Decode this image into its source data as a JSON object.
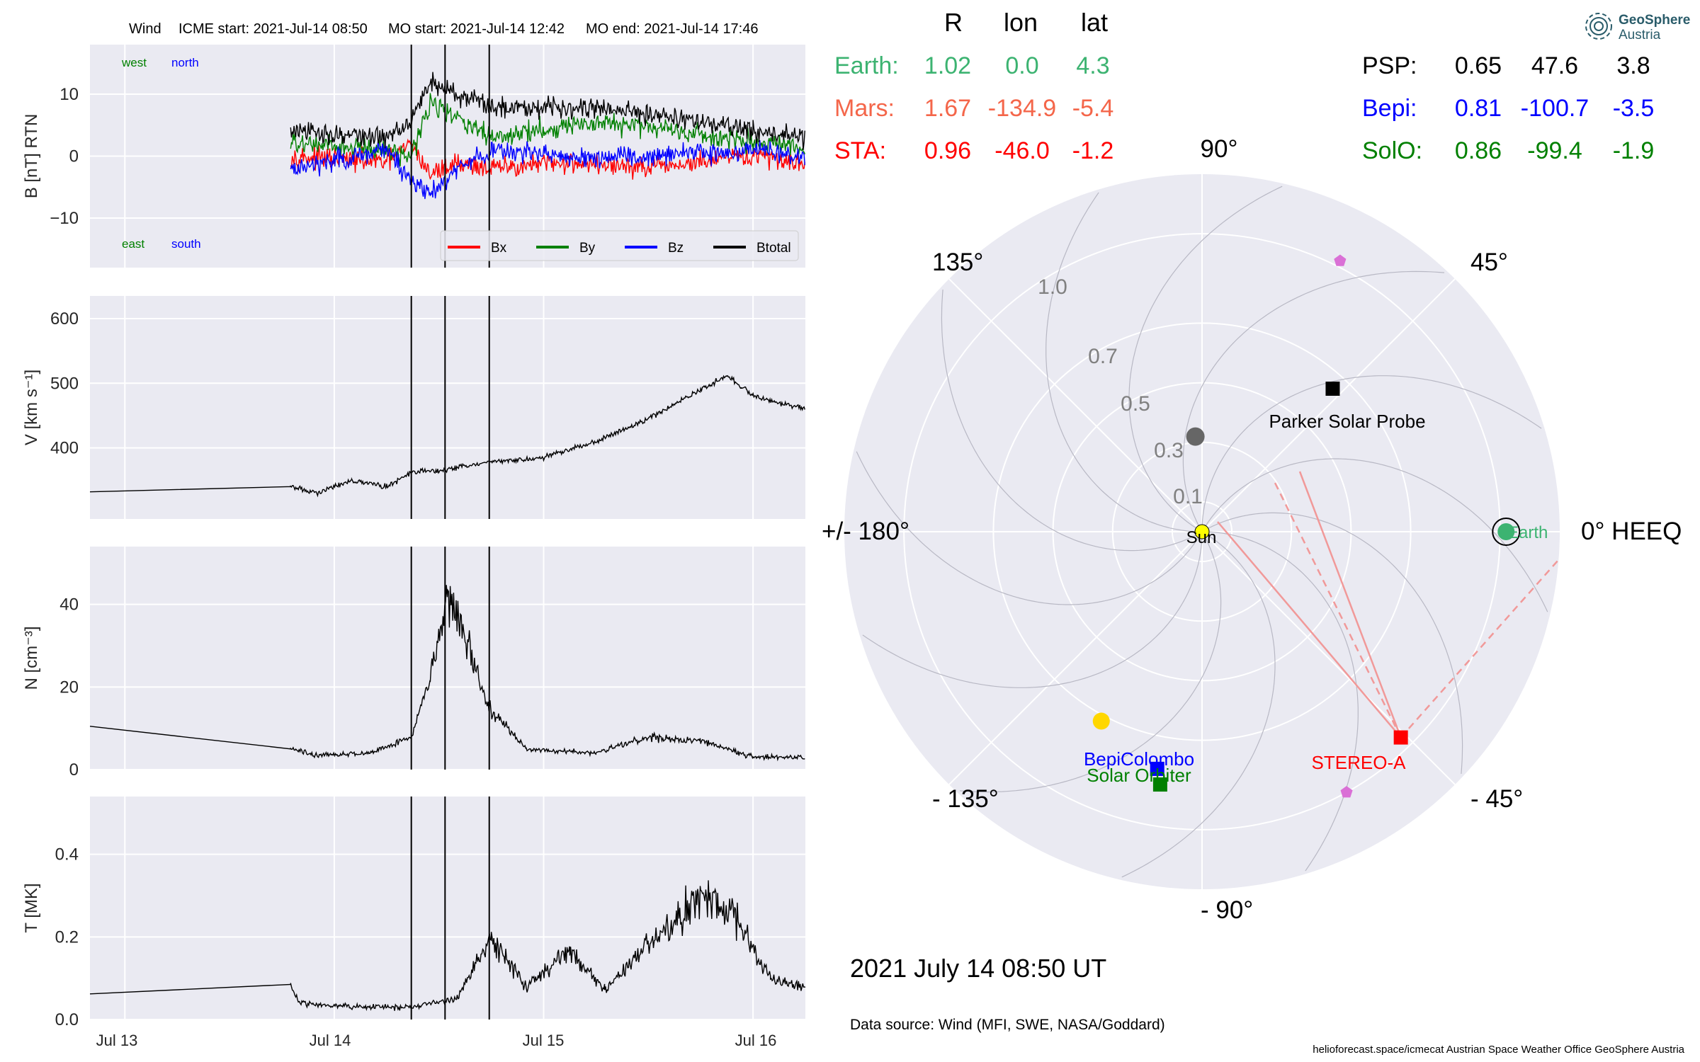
{
  "header": {
    "wind_label": "Wind",
    "icme_start": "ICME start: 2021-Jul-14 08:50",
    "mo_start": "MO start: 2021-Jul-14 12:42",
    "mo_end": "MO end: 2021-Jul-14 17:46"
  },
  "colors": {
    "panel_bg": "#eaeaf2",
    "bx": "#ff0000",
    "by": "#008000",
    "bz": "#0000ff",
    "btotal": "#000000",
    "earth": "#3cb371",
    "mars": "#f4664a",
    "sta": "#ff0000",
    "bepi": "#0000ff",
    "solo": "#008000",
    "psp": "#000000",
    "sun": "#ffff00",
    "venus": "#ffd700",
    "mercury": "#666666",
    "marker": "#da70d6",
    "parker_spiral": "#ff9999"
  },
  "chart_data": [
    {
      "type": "line",
      "panel": "magnetic_field",
      "ylabel": "B [nT] RTN",
      "ylim": [
        -18,
        18
      ],
      "yticks": [
        -10,
        0,
        10
      ],
      "corner_labels": {
        "top_left": "west",
        "top_right": "north",
        "bottom_left": "east",
        "bottom_right": "south"
      },
      "legend": {
        "placement": "lower-right",
        "entries": [
          "Bx",
          "By",
          "Bz",
          "Btotal"
        ]
      },
      "x_range_days": [
        "2021-07-12 20:00",
        "2021-07-16 06:00"
      ],
      "data_start": "2021-07-13 19:00",
      "series": [
        {
          "name": "Bx",
          "times": [
            "2021-07-13 19:00",
            "2021-07-14 06:00",
            "2021-07-14 08:50",
            "2021-07-14 11:00",
            "2021-07-14 14:00",
            "2021-07-14 18:00",
            "2021-07-15 03:00",
            "2021-07-15 12:00",
            "2021-07-16 00:00",
            "2021-07-16 06:00"
          ],
          "values": [
            0,
            -1,
            2,
            -3,
            -1,
            -2,
            -1,
            -2,
            0,
            -1
          ]
        },
        {
          "name": "By",
          "times": [
            "2021-07-13 19:00",
            "2021-07-14 06:00",
            "2021-07-14 08:50",
            "2021-07-14 11:00",
            "2021-07-14 14:00",
            "2021-07-14 18:00",
            "2021-07-15 03:00",
            "2021-07-15 12:00",
            "2021-07-16 00:00",
            "2021-07-16 06:00"
          ],
          "values": [
            2,
            1,
            0,
            9,
            6,
            3,
            5,
            5,
            2,
            1
          ]
        },
        {
          "name": "Bz",
          "times": [
            "2021-07-13 19:00",
            "2021-07-14 06:00",
            "2021-07-14 08:50",
            "2021-07-14 11:00",
            "2021-07-14 14:00",
            "2021-07-14 18:00",
            "2021-07-15 03:00",
            "2021-07-15 12:00",
            "2021-07-16 00:00",
            "2021-07-16 06:00"
          ],
          "values": [
            -2,
            1,
            -4,
            -6,
            -2,
            1,
            0,
            0,
            1,
            0
          ]
        },
        {
          "name": "Btotal",
          "times": [
            "2021-07-13 19:00",
            "2021-07-14 06:00",
            "2021-07-14 08:50",
            "2021-07-14 11:00",
            "2021-07-14 14:00",
            "2021-07-14 18:00",
            "2021-07-15 03:00",
            "2021-07-15 12:00",
            "2021-07-16 00:00",
            "2021-07-16 06:00"
          ],
          "values": [
            4,
            3,
            6,
            12,
            10,
            8,
            8,
            7,
            4,
            3
          ]
        }
      ]
    },
    {
      "type": "line",
      "panel": "speed",
      "ylabel": "V [km s⁻¹]",
      "ylim": [
        290,
        635
      ],
      "yticks": [
        400,
        500,
        600
      ],
      "series": [
        {
          "name": "V",
          "times": [
            "2021-07-12 20:00",
            "2021-07-13 19:00",
            "2021-07-13 22:00",
            "2021-07-14 02:00",
            "2021-07-14 06:00",
            "2021-07-14 08:50",
            "2021-07-14 12:00",
            "2021-07-14 18:00",
            "2021-07-15 00:00",
            "2021-07-15 06:00",
            "2021-07-15 12:00",
            "2021-07-15 18:00",
            "2021-07-15 21:00",
            "2021-07-16 00:00",
            "2021-07-16 06:00"
          ],
          "values": [
            332,
            340,
            330,
            350,
            340,
            362,
            365,
            378,
            385,
            410,
            445,
            490,
            512,
            480,
            460
          ]
        }
      ]
    },
    {
      "type": "line",
      "panel": "density",
      "ylabel": "N [cm⁻³]",
      "ylim": [
        0,
        54
      ],
      "yticks": [
        0,
        20,
        40
      ],
      "series": [
        {
          "name": "N",
          "times": [
            "2021-07-12 20:00",
            "2021-07-13 19:00",
            "2021-07-13 22:00",
            "2021-07-14 04:00",
            "2021-07-14 08:50",
            "2021-07-14 11:00",
            "2021-07-14 13:00",
            "2021-07-14 15:00",
            "2021-07-14 17:46",
            "2021-07-14 22:00",
            "2021-07-15 06:00",
            "2021-07-15 12:00",
            "2021-07-15 18:00",
            "2021-07-16 00:00",
            "2021-07-16 06:00"
          ],
          "values": [
            10.5,
            5,
            3.5,
            4,
            8,
            22,
            42,
            32,
            15,
            5,
            4,
            8,
            7,
            3,
            3
          ]
        }
      ]
    },
    {
      "type": "line",
      "panel": "temperature",
      "ylabel": "T [MK]",
      "ylim": [
        0,
        0.54
      ],
      "yticks": [
        0.0,
        0.2,
        0.4
      ],
      "series": [
        {
          "name": "T",
          "times": [
            "2021-07-12 20:00",
            "2021-07-13 19:00",
            "2021-07-13 20:00",
            "2021-07-14 04:00",
            "2021-07-14 08:50",
            "2021-07-14 14:00",
            "2021-07-14 18:00",
            "2021-07-14 22:00",
            "2021-07-15 03:00",
            "2021-07-15 07:00",
            "2021-07-15 12:00",
            "2021-07-15 18:00",
            "2021-07-15 22:00",
            "2021-07-16 02:00",
            "2021-07-16 06:00"
          ],
          "values": [
            0.062,
            0.085,
            0.04,
            0.03,
            0.03,
            0.05,
            0.2,
            0.08,
            0.17,
            0.07,
            0.18,
            0.3,
            0.25,
            0.1,
            0.08
          ]
        }
      ]
    },
    {
      "type": "scatter",
      "panel": "polar_positions",
      "coordinate_system": "HEEQ",
      "radial_ticks": [
        "0.1",
        "0.3",
        "0.5",
        "0.7",
        "1.0"
      ],
      "angle_labels": [
        "0° HEEQ",
        "45°",
        "90°",
        "135°",
        "+/- 180°",
        "- 135°",
        "- 90°",
        "- 45°"
      ],
      "bodies": [
        {
          "name": "Sun",
          "r": 0.0,
          "lon": 0.0
        },
        {
          "name": "Earth",
          "r": 1.02,
          "lon": 0.0
        },
        {
          "name": "STEREO-A",
          "r": 0.96,
          "lon": -46.0
        },
        {
          "name": "Parker Solar Probe",
          "r": 0.65,
          "lon": 47.6
        },
        {
          "name": "BepiColombo",
          "r": 0.81,
          "lon": -100.7
        },
        {
          "name": "Solar Orbiter",
          "r": 0.86,
          "lon": -99.4
        },
        {
          "name": "Venus",
          "r": 0.72,
          "lon": -118.0
        },
        {
          "name": "Mercury",
          "r": 0.32,
          "lon": 94.0
        },
        {
          "name": "marker-upper",
          "r": 1.02,
          "lon": 63.0
        },
        {
          "name": "marker-lower",
          "r": 1.0,
          "lon": -61.0
        }
      ]
    }
  ],
  "position_table": {
    "headers": [
      "R",
      "lon",
      "lat"
    ],
    "left_rows": [
      {
        "name": "Earth:",
        "r": "1.02",
        "lon": "0.0",
        "lat": "4.3"
      },
      {
        "name": "Mars:",
        "r": "1.67",
        "lon": "-134.9",
        "lat": "-5.4"
      },
      {
        "name": "STA:",
        "r": "0.96",
        "lon": "-46.0",
        "lat": "-1.2"
      }
    ],
    "right_rows": [
      {
        "name": "PSP:",
        "r": "0.65",
        "lon": "47.6",
        "lat": "3.8"
      },
      {
        "name": "Bepi:",
        "r": "0.81",
        "lon": "-100.7",
        "lat": "-3.5"
      },
      {
        "name": "SolO:",
        "r": "0.86",
        "lon": "-99.4",
        "lat": "-1.9"
      }
    ]
  },
  "time_axis": {
    "ticks": [
      "Jul 13",
      "Jul 14",
      "Jul 15",
      "Jul 16"
    ]
  },
  "event_time": "2021 July 14  08:50 UT",
  "data_source": "Data source: Wind (MFI, SWE, NASA/Goddard)",
  "footer": "helioforecast.space/icmecat   Austrian Space Weather Office   GeoSphere Austria",
  "logo": {
    "line1": "GeoSphere",
    "line2": "Austria"
  }
}
